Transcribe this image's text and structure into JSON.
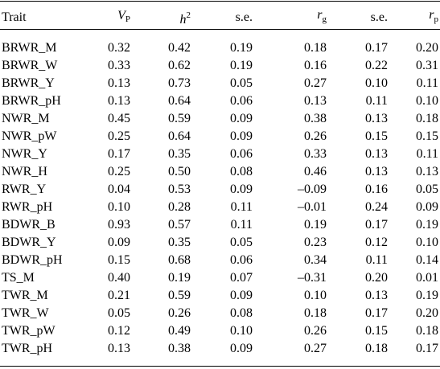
{
  "table": {
    "headers": {
      "trait": "Trait",
      "vp_symbol": "V",
      "vp_sub": "P",
      "h2_symbol": "h",
      "h2_sup": "2",
      "se1": "s.e.",
      "rg_symbol": "r",
      "rg_sub": "g",
      "se2": "s.e.",
      "rp_symbol": "r",
      "rp_sub": "p"
    },
    "rows": [
      [
        "BRWR_M",
        "0.32",
        "0.42",
        "0.19",
        "0.18",
        "0.17",
        "0.20"
      ],
      [
        "BRWR_W",
        "0.33",
        "0.62",
        "0.19",
        "0.16",
        "0.22",
        "0.31"
      ],
      [
        "BRWR_Y",
        "0.13",
        "0.73",
        "0.05",
        "0.27",
        "0.10",
        "0.11"
      ],
      [
        "BRWR_pH",
        "0.13",
        "0.64",
        "0.06",
        "0.13",
        "0.11",
        "0.10"
      ],
      [
        "NWR_M",
        "0.45",
        "0.59",
        "0.09",
        "0.38",
        "0.13",
        "0.18"
      ],
      [
        "NWR_pW",
        "0.25",
        "0.64",
        "0.09",
        "0.26",
        "0.15",
        "0.15"
      ],
      [
        "NWR_Y",
        "0.17",
        "0.35",
        "0.06",
        "0.33",
        "0.13",
        "0.11"
      ],
      [
        "NWR_H",
        "0.25",
        "0.50",
        "0.08",
        "0.46",
        "0.13",
        "0.13"
      ],
      [
        "RWR_Y",
        "0.04",
        "0.53",
        "0.09",
        "–0.09",
        "0.16",
        "0.05"
      ],
      [
        "RWR_pH",
        "0.10",
        "0.28",
        "0.11",
        "–0.01",
        "0.24",
        "0.09"
      ],
      [
        "BDWR_B",
        "0.93",
        "0.57",
        "0.11",
        "0.19",
        "0.17",
        "0.19"
      ],
      [
        "BDWR_Y",
        "0.09",
        "0.35",
        "0.05",
        "0.23",
        "0.12",
        "0.10"
      ],
      [
        "BDWR_pH",
        "0.15",
        "0.68",
        "0.06",
        "0.34",
        "0.11",
        "0.14"
      ],
      [
        "TS_M",
        "0.40",
        "0.19",
        "0.07",
        "–0.31",
        "0.20",
        "0.01"
      ],
      [
        "TWR_M",
        "0.21",
        "0.59",
        "0.09",
        "0.10",
        "0.13",
        "0.19"
      ],
      [
        "TWR_W",
        "0.05",
        "0.26",
        "0.08",
        "0.18",
        "0.17",
        "0.20"
      ],
      [
        "TWR_pW",
        "0.12",
        "0.49",
        "0.10",
        "0.26",
        "0.15",
        "0.18"
      ],
      [
        "TWR_pH",
        "0.13",
        "0.38",
        "0.09",
        "0.27",
        "0.18",
        "0.17"
      ]
    ]
  }
}
